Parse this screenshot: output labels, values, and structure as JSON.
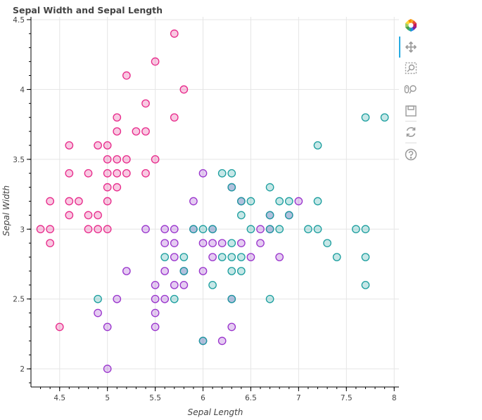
{
  "chart_data": {
    "type": "scatter",
    "title": "Sepal Width and Sepal Length",
    "xlabel": "Sepal Length",
    "ylabel": "Sepal Width",
    "xlim": [
      4.2,
      8.05
    ],
    "ylim": [
      1.87,
      4.52
    ],
    "xticks": [
      "4.5",
      "5",
      "5.5",
      "6",
      "6.5",
      "7",
      "7.5",
      "8"
    ],
    "yticks": [
      "2",
      "2.5",
      "3",
      "3.5",
      "4",
      "4.5"
    ],
    "grid": true,
    "series": [
      {
        "color": "#e7298a",
        "points": [
          [
            4.3,
            3.0
          ],
          [
            4.4,
            3.0
          ],
          [
            4.4,
            2.9
          ],
          [
            4.4,
            3.2
          ],
          [
            4.5,
            2.3
          ],
          [
            4.6,
            3.1
          ],
          [
            4.6,
            3.2
          ],
          [
            4.6,
            3.4
          ],
          [
            4.6,
            3.6
          ],
          [
            4.7,
            3.2
          ],
          [
            4.8,
            3.0
          ],
          [
            4.8,
            3.1
          ],
          [
            4.8,
            3.4
          ],
          [
            4.9,
            3.0
          ],
          [
            4.9,
            3.1
          ],
          [
            4.9,
            3.6
          ],
          [
            5.0,
            3.0
          ],
          [
            5.0,
            3.2
          ],
          [
            5.0,
            3.3
          ],
          [
            5.0,
            3.4
          ],
          [
            5.0,
            3.5
          ],
          [
            5.0,
            3.6
          ],
          [
            5.1,
            3.3
          ],
          [
            5.1,
            3.4
          ],
          [
            5.1,
            3.5
          ],
          [
            5.1,
            3.7
          ],
          [
            5.1,
            3.8
          ],
          [
            5.2,
            3.4
          ],
          [
            5.2,
            3.5
          ],
          [
            5.2,
            4.1
          ],
          [
            5.3,
            3.7
          ],
          [
            5.4,
            3.4
          ],
          [
            5.4,
            3.7
          ],
          [
            5.4,
            3.9
          ],
          [
            5.5,
            3.5
          ],
          [
            5.5,
            4.2
          ],
          [
            5.7,
            3.8
          ],
          [
            5.7,
            4.4
          ],
          [
            5.8,
            4.0
          ]
        ]
      },
      {
        "color": "#9933cc",
        "points": [
          [
            4.9,
            2.4
          ],
          [
            5.0,
            2.0
          ],
          [
            5.0,
            2.3
          ],
          [
            5.1,
            2.5
          ],
          [
            5.2,
            2.7
          ],
          [
            5.4,
            3.0
          ],
          [
            5.5,
            2.3
          ],
          [
            5.5,
            2.4
          ],
          [
            5.5,
            2.5
          ],
          [
            5.5,
            2.6
          ],
          [
            5.6,
            2.5
          ],
          [
            5.6,
            2.7
          ],
          [
            5.6,
            2.9
          ],
          [
            5.6,
            3.0
          ],
          [
            5.7,
            2.6
          ],
          [
            5.7,
            2.8
          ],
          [
            5.7,
            2.9
          ],
          [
            5.7,
            3.0
          ],
          [
            5.8,
            2.6
          ],
          [
            5.8,
            2.7
          ],
          [
            5.9,
            3.0
          ],
          [
            5.9,
            3.2
          ],
          [
            6.0,
            2.2
          ],
          [
            6.0,
            2.7
          ],
          [
            6.0,
            2.9
          ],
          [
            6.0,
            3.4
          ],
          [
            6.1,
            2.8
          ],
          [
            6.1,
            2.9
          ],
          [
            6.1,
            3.0
          ],
          [
            6.2,
            2.2
          ],
          [
            6.2,
            2.9
          ],
          [
            6.3,
            2.3
          ],
          [
            6.3,
            2.5
          ],
          [
            6.3,
            3.3
          ],
          [
            6.4,
            2.9
          ],
          [
            6.4,
            3.2
          ],
          [
            6.5,
            2.8
          ],
          [
            6.6,
            2.9
          ],
          [
            6.6,
            3.0
          ],
          [
            6.7,
            3.0
          ],
          [
            6.7,
            3.1
          ],
          [
            6.8,
            2.8
          ],
          [
            6.9,
            3.1
          ],
          [
            7.0,
            3.2
          ]
        ]
      },
      {
        "color": "#1b9e9e",
        "points": [
          [
            4.9,
            2.5
          ],
          [
            5.6,
            2.8
          ],
          [
            5.7,
            2.5
          ],
          [
            5.8,
            2.7
          ],
          [
            5.8,
            2.8
          ],
          [
            5.9,
            3.0
          ],
          [
            6.0,
            2.2
          ],
          [
            6.0,
            3.0
          ],
          [
            6.1,
            2.6
          ],
          [
            6.1,
            3.0
          ],
          [
            6.2,
            2.8
          ],
          [
            6.2,
            3.4
          ],
          [
            6.3,
            2.5
          ],
          [
            6.3,
            2.7
          ],
          [
            6.3,
            2.8
          ],
          [
            6.3,
            2.9
          ],
          [
            6.3,
            3.3
          ],
          [
            6.3,
            3.4
          ],
          [
            6.4,
            2.7
          ],
          [
            6.4,
            2.8
          ],
          [
            6.4,
            3.1
          ],
          [
            6.4,
            3.2
          ],
          [
            6.5,
            3.0
          ],
          [
            6.5,
            3.2
          ],
          [
            6.7,
            2.5
          ],
          [
            6.7,
            3.0
          ],
          [
            6.7,
            3.1
          ],
          [
            6.7,
            3.3
          ],
          [
            6.8,
            3.0
          ],
          [
            6.8,
            3.2
          ],
          [
            6.9,
            3.1
          ],
          [
            6.9,
            3.2
          ],
          [
            7.1,
            3.0
          ],
          [
            7.2,
            3.0
          ],
          [
            7.2,
            3.2
          ],
          [
            7.2,
            3.6
          ],
          [
            7.3,
            2.9
          ],
          [
            7.4,
            2.8
          ],
          [
            7.6,
            3.0
          ],
          [
            7.7,
            2.6
          ],
          [
            7.7,
            2.8
          ],
          [
            7.7,
            3.0
          ],
          [
            7.7,
            3.8
          ],
          [
            7.9,
            3.8
          ]
        ]
      }
    ]
  },
  "toolbar": {
    "icons": [
      "bokeh-logo-icon",
      "pan-icon",
      "box-zoom-icon",
      "wheel-zoom-icon",
      "save-icon",
      "reset-icon",
      "help-icon"
    ]
  }
}
